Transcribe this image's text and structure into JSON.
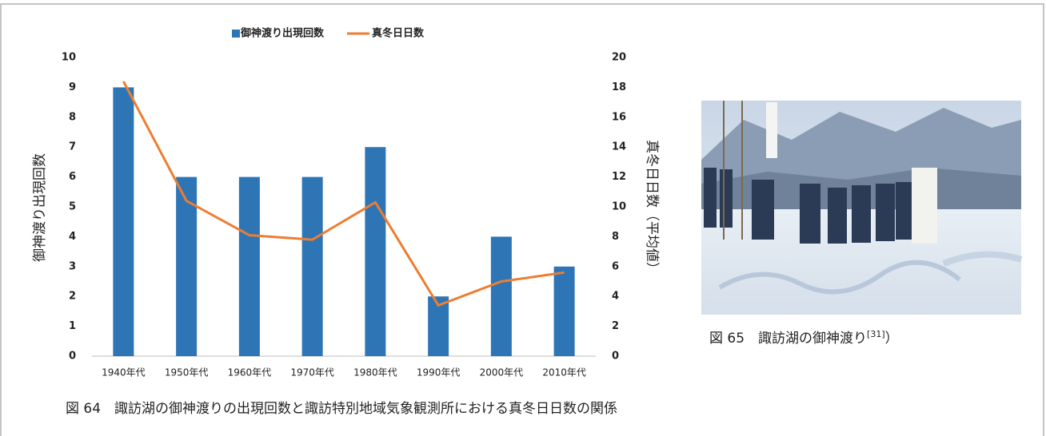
{
  "chart_data": {
    "type": "bar",
    "categories": [
      "1940年代",
      "1950年代",
      "1960年代",
      "1970年代",
      "1980年代",
      "1990年代",
      "2000年代",
      "2010年代"
    ],
    "series": [
      {
        "name": "御神渡り出現回数",
        "type": "bar",
        "color": "#2e75b6",
        "values": [
          9,
          6,
          6,
          6,
          7,
          2,
          4,
          3
        ]
      },
      {
        "name": "真冬日日数",
        "type": "line",
        "axis": "y2",
        "color": "#ed7d31",
        "values": [
          18.4,
          10.4,
          8.1,
          7.8,
          10.3,
          3.4,
          5.0,
          5.6
        ]
      }
    ],
    "y_label": "御神渡り出現回数",
    "y2_label": "真冬日日数（平均値）",
    "ylim": [
      0,
      10
    ],
    "yticks": [
      0,
      1,
      2,
      3,
      4,
      5,
      6,
      7,
      8,
      9,
      10
    ],
    "y2lim": [
      0,
      20
    ],
    "y2ticks": [
      0,
      2,
      4,
      6,
      8,
      10,
      12,
      14,
      16,
      18,
      20
    ],
    "legend": "top",
    "grid": false
  },
  "figure_caption": "図 64　諏訪湖の御神渡りの出現回数と諏訪特別地域気象観測所における真冬日日数の関係",
  "photo_caption": {
    "text": "図 65　諏訪湖の御神渡り",
    "ref": "[31]",
    "close": "）"
  }
}
